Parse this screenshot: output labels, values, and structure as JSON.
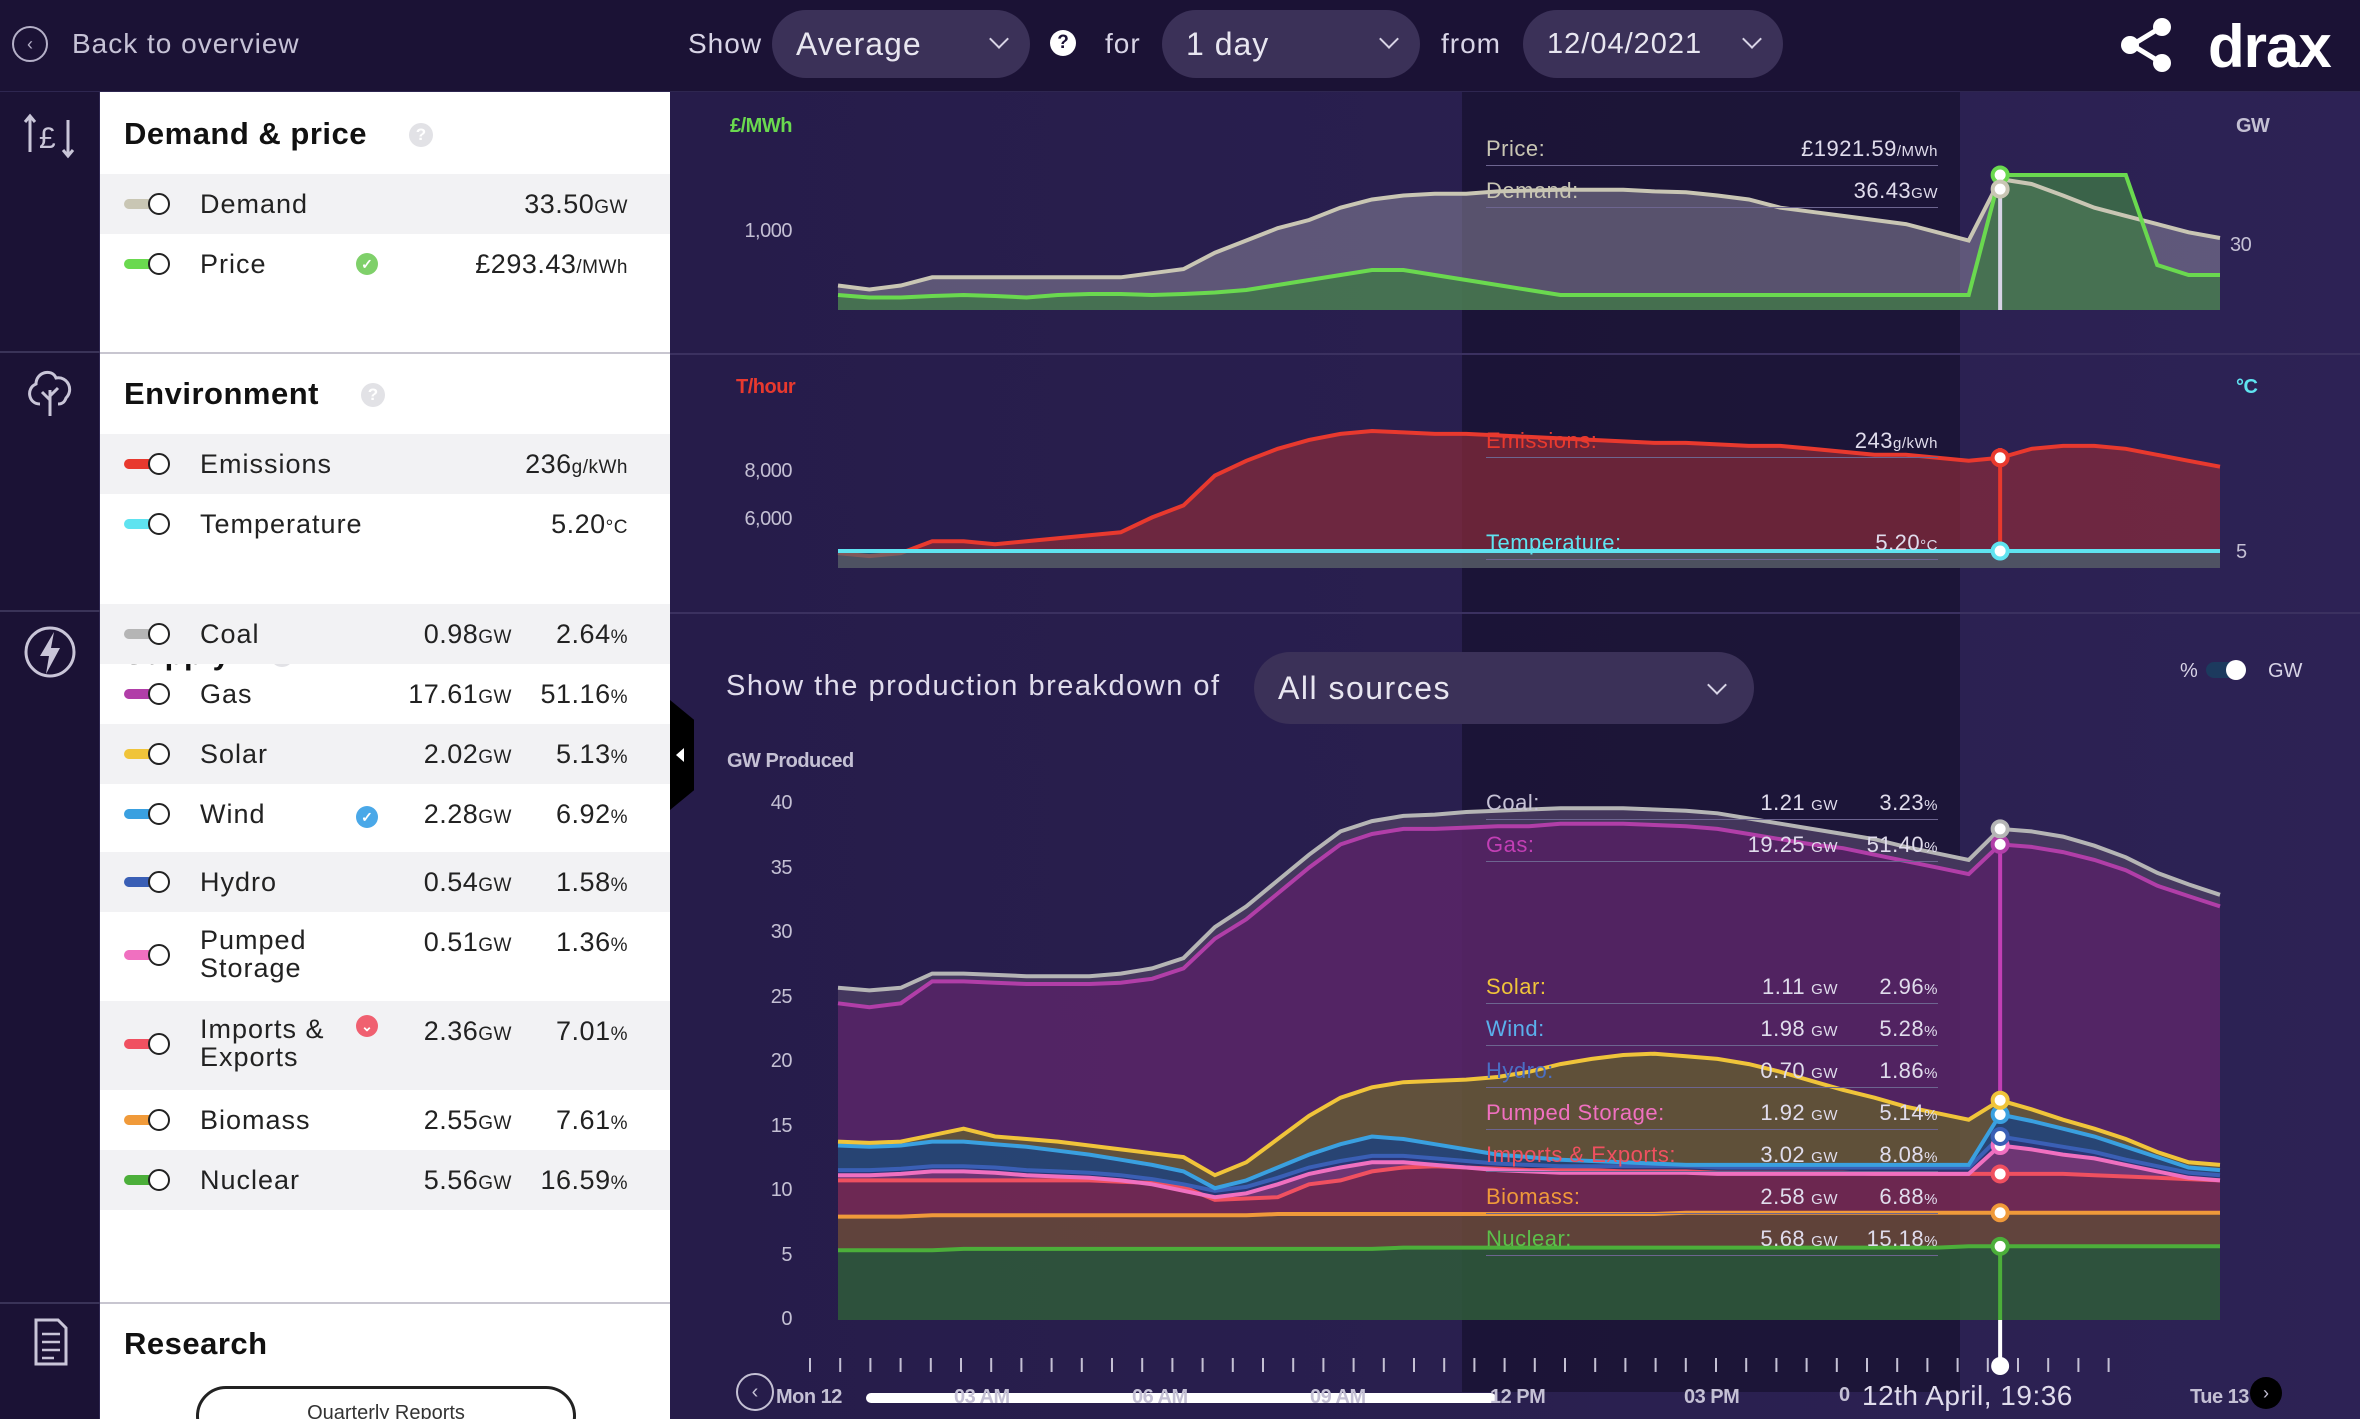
{
  "topbar": {
    "back_label": "Back to overview",
    "show_label": "Show",
    "show_value": "Average",
    "for_label": "for",
    "period_value": "1 day",
    "from_label": "from",
    "date_value": "12/04/2021",
    "logo": "drax"
  },
  "panel": {
    "demand_price": {
      "title": "Demand & price",
      "rows": [
        {
          "label": "Demand",
          "value": "33.50",
          "unit": "GW",
          "color": "#c9c6b4"
        },
        {
          "label": "Price",
          "value": "£293.43",
          "unit": "/MWh",
          "color": "#6ad94f"
        }
      ]
    },
    "environment": {
      "title": "Environment",
      "rows": [
        {
          "label": "Emissions",
          "value": "236",
          "unit": "g/kWh",
          "color": "#e8392e"
        },
        {
          "label": "Temperature",
          "value": "5.20",
          "unit": "°C",
          "color": "#5fe3f0"
        }
      ]
    },
    "supply": {
      "title": "Supply",
      "rows": [
        {
          "label": "Coal",
          "gw": "0.98",
          "pct": "2.64",
          "color": "#b5b5b5"
        },
        {
          "label": "Gas",
          "gw": "17.61",
          "pct": "51.16",
          "color": "#b13ea8"
        },
        {
          "label": "Solar",
          "gw": "2.02",
          "pct": "5.13",
          "color": "#f0c43a"
        },
        {
          "label": "Wind",
          "gw": "2.28",
          "pct": "6.92",
          "color": "#3aa0e0"
        },
        {
          "label": "Hydro",
          "gw": "0.54",
          "pct": "1.58",
          "color": "#3a5fb5"
        },
        {
          "label": "Pumped",
          "label2": "Storage",
          "gw": "0.51",
          "pct": "1.36",
          "color": "#f070c0"
        },
        {
          "label": "Imports &",
          "label2": "Exports",
          "gw": "2.36",
          "pct": "7.01",
          "color": "#f05060"
        },
        {
          "label": "Biomass",
          "gw": "2.55",
          "pct": "7.61",
          "color": "#f09a3a"
        },
        {
          "label": "Nuclear",
          "gw": "5.56",
          "pct": "16.59",
          "color": "#4caf3a"
        }
      ],
      "gw_unit": "GW",
      "pct_unit": "%"
    },
    "research": {
      "title": "Research",
      "button": "Quarterly Reports"
    }
  },
  "charts": {
    "top": {
      "left_unit": "£/MWh",
      "right_unit": "GW",
      "left_ticks": [
        "1,000"
      ],
      "right_ticks": [
        "30"
      ],
      "overlay": [
        {
          "label": "Price:",
          "value": "£1921.59",
          "unit": "/MWh"
        },
        {
          "label": "Demand:",
          "value": "36.43",
          "unit": "GW"
        }
      ]
    },
    "middle": {
      "left_unit": "T/hour",
      "right_unit": "°C",
      "left_ticks": [
        "8,000",
        "6,000"
      ],
      "right_ticks": [
        "5"
      ],
      "overlay": [
        {
          "label": "Emissions:",
          "value": "243",
          "unit": "g/kWh"
        },
        {
          "label": "Temperature:",
          "value": "5.20",
          "unit": "°C"
        }
      ]
    },
    "supply": {
      "breakdown_label": "Show the production breakdown of",
      "breakdown_value": "All sources",
      "pct_label": "%",
      "gw_label": "GW",
      "ylabel": "GW Produced",
      "yticks": [
        "40",
        "35",
        "30",
        "25",
        "20",
        "15",
        "10",
        "5",
        "0"
      ],
      "overlay": [
        {
          "label": "Coal:",
          "gw": "1.21",
          "pct": "3.23",
          "color": "#c6c2d6"
        },
        {
          "label": "Gas:",
          "gw": "19.25",
          "pct": "51.40",
          "color": "#c23fb5"
        },
        {
          "label": "Solar:",
          "gw": "1.11",
          "pct": "2.96",
          "color": "#f0c43a"
        },
        {
          "label": "Wind:",
          "gw": "1.98",
          "pct": "5.28",
          "color": "#5ab0ec"
        },
        {
          "label": "Hydro:",
          "gw": "0.70",
          "pct": "1.86",
          "color": "#4a6fc5"
        },
        {
          "label": "Pumped Storage:",
          "gw": "1.92",
          "pct": "5.14",
          "color": "#f070c0"
        },
        {
          "label": "Imports & Exports:",
          "gw": "3.02",
          "pct": "8.08",
          "color": "#f05060"
        },
        {
          "label": "Biomass:",
          "gw": "2.58",
          "pct": "6.88",
          "color": "#f09a3a"
        },
        {
          "label": "Nuclear:",
          "gw": "5.68",
          "pct": "15.18",
          "color": "#5cc04a"
        }
      ],
      "gw_unit": "GW",
      "pct_unit": "%"
    },
    "timeline": {
      "labels": [
        "Mon 12",
        "03 AM",
        "06 AM",
        "09 AM",
        "12 PM",
        "03 PM",
        "Tue 13"
      ],
      "cursor_label": "12th April, 19:36",
      "cursor_prefix": "0"
    }
  },
  "chart_data": [
    {
      "type": "area",
      "title": "",
      "ylabel": "£/MWh",
      "y2label": "GW",
      "series": [
        {
          "name": "Demand",
          "color": "#c9c6b4",
          "values": [
            24,
            23.5,
            24,
            25,
            25,
            25,
            25,
            25,
            25,
            25,
            25.5,
            26,
            28,
            29.5,
            31,
            32,
            33.5,
            34.5,
            35,
            35.2,
            35.2,
            35.5,
            35.6,
            35.7,
            35.7,
            35.7,
            35.5,
            35.4,
            35,
            34.5,
            33.5,
            33,
            32.5,
            32,
            31.5,
            30.5,
            29.5,
            37,
            36.4,
            35,
            33.5,
            32.5,
            31.5,
            30.5,
            29.8
          ]
        },
        {
          "name": "Price",
          "color": "#6ad94f",
          "values": [
            60,
            55,
            55,
            58,
            60,
            58,
            55,
            60,
            62,
            62,
            60,
            62,
            65,
            70,
            80,
            90,
            100,
            110,
            110,
            100,
            90,
            80,
            70,
            60,
            60,
            60,
            60,
            60,
            60,
            60,
            60,
            60,
            60,
            60,
            60,
            60,
            60,
            1921,
            1921,
            1800,
            1200,
            300,
            120,
            100,
            100
          ]
        }
      ]
    },
    {
      "type": "area",
      "title": "",
      "ylabel": "T/hour",
      "y2label": "°C",
      "series": [
        {
          "name": "Emissions",
          "color": "#e8392e",
          "values": [
            4700,
            4600,
            4700,
            5100,
            5100,
            5000,
            5100,
            5200,
            5300,
            5400,
            5900,
            6300,
            7300,
            7800,
            8200,
            8500,
            8700,
            8800,
            8750,
            8700,
            8700,
            8650,
            8600,
            8550,
            8500,
            8450,
            8400,
            8400,
            8350,
            8300,
            8300,
            8200,
            8100,
            8000,
            8000,
            7900,
            7800,
            7900,
            8200,
            8300,
            8300,
            8200,
            8000,
            7800,
            7600
          ]
        },
        {
          "name": "Temperature",
          "color": "#5fe3f0",
          "values": [
            5.2,
            5.2,
            5.2,
            5.2,
            5.2,
            5.2,
            5.2,
            5.2,
            5.2,
            5.2,
            5.2,
            5.2,
            5.2,
            5.2,
            5.2,
            5.2,
            5.2,
            5.2,
            5.2,
            5.2,
            5.2,
            5.2,
            5.2,
            5.2,
            5.2,
            5.2,
            5.2,
            5.2,
            5.2,
            5.2,
            5.2,
            5.2,
            5.2,
            5.2,
            5.2,
            5.2,
            5.2,
            5.2,
            5.2,
            5.2,
            5.2,
            5.2,
            5.2,
            5.2,
            5.2
          ]
        }
      ]
    },
    {
      "type": "area",
      "title": "",
      "ylabel": "GW Produced",
      "ylim": [
        0,
        40
      ],
      "series": [
        {
          "name": "Nuclear",
          "color": "#4caf3a",
          "values": [
            5.4,
            5.4,
            5.4,
            5.4,
            5.5,
            5.5,
            5.5,
            5.5,
            5.5,
            5.5,
            5.5,
            5.5,
            5.5,
            5.5,
            5.5,
            5.5,
            5.5,
            5.5,
            5.6,
            5.6,
            5.6,
            5.6,
            5.6,
            5.6,
            5.6,
            5.6,
            5.6,
            5.6,
            5.6,
            5.6,
            5.6,
            5.6,
            5.6,
            5.6,
            5.6,
            5.6,
            5.7,
            5.7,
            5.7,
            5.7,
            5.7,
            5.7,
            5.7,
            5.7,
            5.7
          ]
        },
        {
          "name": "Biomass",
          "color": "#f09a3a",
          "values": [
            8,
            8,
            8,
            8.1,
            8.1,
            8.1,
            8.1,
            8.1,
            8.1,
            8.1,
            8.1,
            8.1,
            8.1,
            8.1,
            8.2,
            8.2,
            8.2,
            8.2,
            8.2,
            8.2,
            8.2,
            8.2,
            8.2,
            8.2,
            8.2,
            8.2,
            8.2,
            8.3,
            8.3,
            8.3,
            8.3,
            8.3,
            8.3,
            8.3,
            8.3,
            8.3,
            8.3,
            8.3,
            8.3,
            8.3,
            8.3,
            8.3,
            8.3,
            8.3,
            8.3
          ]
        },
        {
          "name": "Imports & Exports",
          "color": "#f05060",
          "values": [
            10.8,
            10.8,
            10.8,
            10.8,
            10.8,
            10.8,
            10.8,
            10.8,
            10.8,
            10.7,
            10.6,
            10.3,
            9.3,
            9.4,
            9.5,
            10.5,
            10.8,
            11.5,
            11.8,
            11.9,
            11.8,
            11.7,
            11.6,
            11.6,
            11.6,
            11.5,
            11.5,
            11.5,
            11.4,
            11.4,
            11.4,
            11.4,
            11.4,
            11.3,
            11.3,
            11.3,
            11.3,
            11.3,
            11.3,
            11.3,
            11.2,
            11.1,
            11,
            10.9,
            10.8
          ]
        },
        {
          "name": "Pumped Storage",
          "color": "#f070c0",
          "values": [
            11.2,
            11.2,
            11.3,
            11.5,
            11.5,
            11.4,
            11.2,
            11.1,
            11,
            10.8,
            10.5,
            10,
            9.5,
            9.8,
            10.5,
            11.3,
            11.8,
            12.2,
            12.2,
            12,
            11.8,
            11.6,
            11.5,
            11.4,
            11.4,
            11.4,
            11.4,
            11.4,
            11.3,
            11.3,
            11.3,
            11.3,
            11.3,
            11.3,
            11.3,
            11.3,
            11.3,
            13.5,
            13.2,
            12.8,
            12.5,
            12,
            11.5,
            11,
            10.8
          ]
        },
        {
          "name": "Hydro",
          "color": "#3a5fb5",
          "values": [
            11.6,
            11.6,
            11.7,
            11.9,
            11.9,
            11.8,
            11.6,
            11.5,
            11.4,
            11.2,
            10.9,
            10.5,
            10,
            10.3,
            11,
            11.8,
            12.3,
            12.7,
            12.7,
            12.5,
            12.3,
            12.1,
            12,
            11.9,
            11.9,
            11.9,
            11.9,
            11.9,
            11.8,
            11.8,
            11.8,
            11.8,
            11.8,
            11.8,
            11.8,
            11.8,
            11.8,
            14.2,
            13.8,
            13.4,
            13,
            12.4,
            11.9,
            11.4,
            11.2
          ]
        },
        {
          "name": "Wind",
          "color": "#3aa0e0",
          "values": [
            13.5,
            13.4,
            13.5,
            13.8,
            13.8,
            13.6,
            13.4,
            13.1,
            12.8,
            12.4,
            12,
            11.5,
            10.2,
            10.8,
            11.8,
            12.8,
            13.6,
            14.2,
            14,
            13.6,
            13.2,
            12.8,
            12.6,
            12.4,
            12.3,
            12.2,
            12.1,
            12,
            12,
            12,
            12,
            12,
            12,
            12,
            12,
            12,
            12,
            15.9,
            15.4,
            14.8,
            14.2,
            13.4,
            12.6,
            11.8,
            11.6
          ]
        },
        {
          "name": "Solar",
          "color": "#f0c43a",
          "values": [
            13.8,
            13.7,
            13.8,
            14.3,
            14.8,
            14.2,
            14,
            13.8,
            13.5,
            13.2,
            12.9,
            12.6,
            11.2,
            12.2,
            14,
            15.8,
            17.2,
            18,
            18.4,
            18.5,
            18.6,
            18.8,
            19.2,
            19.8,
            20.2,
            20.5,
            20.6,
            20.4,
            20.2,
            19.8,
            19.2,
            18.5,
            17.8,
            17.2,
            16.5,
            16,
            15.5,
            17,
            16.3,
            15.5,
            14.8,
            14,
            13,
            12.2,
            12
          ]
        },
        {
          "name": "Gas",
          "color": "#b13ea8",
          "values": [
            24.5,
            24.2,
            24.5,
            26.2,
            26.2,
            26.1,
            26,
            26,
            26,
            26.1,
            26.4,
            27.2,
            29.5,
            31,
            33,
            35,
            36.8,
            37.6,
            38,
            38,
            38.1,
            38.2,
            38.2,
            38.4,
            38.4,
            38.4,
            38.3,
            38.2,
            38,
            37.6,
            37.2,
            36.8,
            36.5,
            36,
            35.5,
            35,
            34.5,
            36.8,
            36.6,
            36.2,
            35.6,
            34.8,
            33.6,
            32.8,
            32
          ]
        },
        {
          "name": "Coal",
          "color": "#b5b5b5",
          "values": [
            25.7,
            25.5,
            25.7,
            26.8,
            26.8,
            26.7,
            26.6,
            26.6,
            26.6,
            26.8,
            27.2,
            28,
            30.4,
            32,
            34,
            36,
            37.8,
            38.6,
            39,
            39.1,
            39.3,
            39.4,
            39.5,
            39.6,
            39.6,
            39.6,
            39.5,
            39.4,
            39.2,
            38.8,
            38.4,
            38,
            37.6,
            37.2,
            36.6,
            36.1,
            35.6,
            38,
            37.8,
            37.4,
            36.7,
            35.8,
            34.6,
            33.7,
            32.9
          ]
        }
      ]
    }
  ]
}
